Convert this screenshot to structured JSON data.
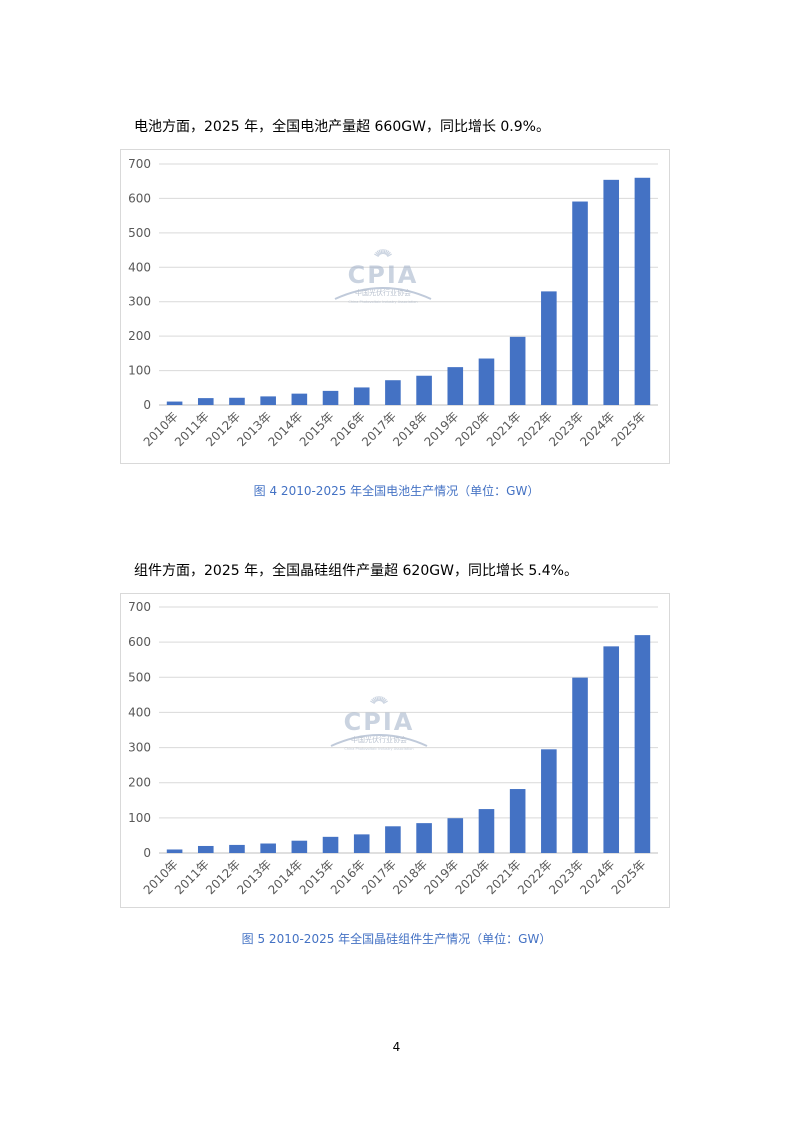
{
  "section1": {
    "text": "电池方面，2025 年，全国电池产量超 660GW，同比增长 0.9%。"
  },
  "figure4": {
    "caption": "图 4    2010-2025 年全国电池生产情况（单位：GW）",
    "watermark": {
      "logo_text": "CPIA",
      "org_name": "中国光伏行业协会",
      "org_name_en": "China Photovoltaic Industry Association"
    },
    "bar_color": "#4472c4"
  },
  "section2": {
    "text": "组件方面，2025 年，全国晶硅组件产量超 620GW，同比增长 5.4%。"
  },
  "figure5": {
    "caption": "图 5    2010-2025 年全国晶硅组件生产情况（单位：GW）",
    "watermark": {
      "logo_text": "CPIA",
      "org_name": "中国光伏行业协会",
      "org_name_en": "China Photovoltaic Industry Association"
    },
    "bar_color": "#4472c4"
  },
  "page_number": "4",
  "chart_data": [
    {
      "type": "bar",
      "title": "",
      "xlabel": "",
      "ylabel": "",
      "categories": [
        "2010年",
        "2011年",
        "2012年",
        "2013年",
        "2014年",
        "2015年",
        "2016年",
        "2017年",
        "2018年",
        "2019年",
        "2020年",
        "2021年",
        "2022年",
        "2023年",
        "2024年",
        "2025年"
      ],
      "values": [
        10,
        20,
        21,
        25,
        33,
        41,
        51,
        72,
        85,
        110,
        135,
        198,
        330,
        591,
        654,
        660
      ],
      "ylim": [
        0,
        700
      ],
      "yticks": [
        0,
        100,
        200,
        300,
        400,
        500,
        600,
        700
      ],
      "grid": true,
      "legend": "none"
    },
    {
      "type": "bar",
      "title": "",
      "xlabel": "",
      "ylabel": "",
      "categories": [
        "2010年",
        "2011年",
        "2012年",
        "2013年",
        "2014年",
        "2015年",
        "2016年",
        "2017年",
        "2018年",
        "2019年",
        "2020年",
        "2021年",
        "2022年",
        "2023年",
        "2024年",
        "2025年"
      ],
      "values": [
        10,
        20,
        23,
        27,
        35,
        46,
        53,
        76,
        85,
        99,
        125,
        182,
        295,
        499,
        588,
        620
      ],
      "ylim": [
        0,
        700
      ],
      "yticks": [
        0,
        100,
        200,
        300,
        400,
        500,
        600,
        700
      ],
      "grid": true,
      "legend": "none"
    }
  ]
}
